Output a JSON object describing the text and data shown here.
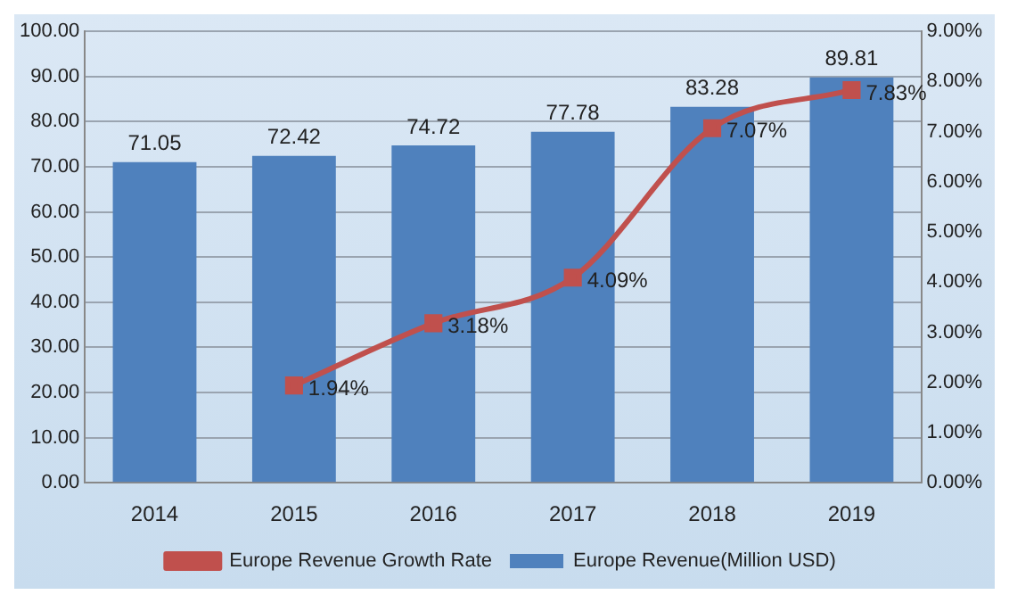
{
  "chart_data": {
    "type": "bar",
    "categories": [
      "2014",
      "2015",
      "2016",
      "2017",
      "2018",
      "2019"
    ],
    "series": [
      {
        "name": "Europe Revenue(Million USD)",
        "color": "#4f81bd",
        "values": [
          71.05,
          72.42,
          74.72,
          77.78,
          83.28,
          89.81
        ],
        "value_labels": [
          "71.05",
          "72.42",
          "74.72",
          "77.78",
          "83.28",
          "89.81"
        ]
      },
      {
        "name": "Europe Revenue Growth Rate",
        "type": "line",
        "axis": "y2",
        "color": "#c0504d",
        "marker": "square",
        "values": [
          null,
          1.94,
          3.18,
          4.09,
          7.07,
          7.83
        ],
        "value_labels": [
          null,
          "1.94%",
          "3.18%",
          "4.09%",
          "7.07%",
          "7.83%"
        ]
      }
    ],
    "ylim": [
      0,
      100
    ],
    "yticks": [
      {
        "value": 0,
        "label": "0.00"
      },
      {
        "value": 10,
        "label": "10.00"
      },
      {
        "value": 20,
        "label": "20.00"
      },
      {
        "value": 30,
        "label": "30.00"
      },
      {
        "value": 40,
        "label": "40.00"
      },
      {
        "value": 50,
        "label": "50.00"
      },
      {
        "value": 60,
        "label": "60.00"
      },
      {
        "value": 70,
        "label": "70.00"
      },
      {
        "value": 80,
        "label": "80.00"
      },
      {
        "value": 90,
        "label": "90.00"
      },
      {
        "value": 100,
        "label": "100.00"
      }
    ],
    "y2lim": [
      0,
      9
    ],
    "y2ticks": [
      {
        "value": 0,
        "label": "0.00%"
      },
      {
        "value": 1,
        "label": "1.00%"
      },
      {
        "value": 2,
        "label": "2.00%"
      },
      {
        "value": 3,
        "label": "3.00%"
      },
      {
        "value": 4,
        "label": "4.00%"
      },
      {
        "value": 5,
        "label": "5.00%"
      },
      {
        "value": 6,
        "label": "6.00%"
      },
      {
        "value": 7,
        "label": "7.00%"
      },
      {
        "value": 8,
        "label": "8.00%"
      },
      {
        "value": 9,
        "label": "9.00%"
      }
    ],
    "grid": "y",
    "legend": "bottom"
  }
}
